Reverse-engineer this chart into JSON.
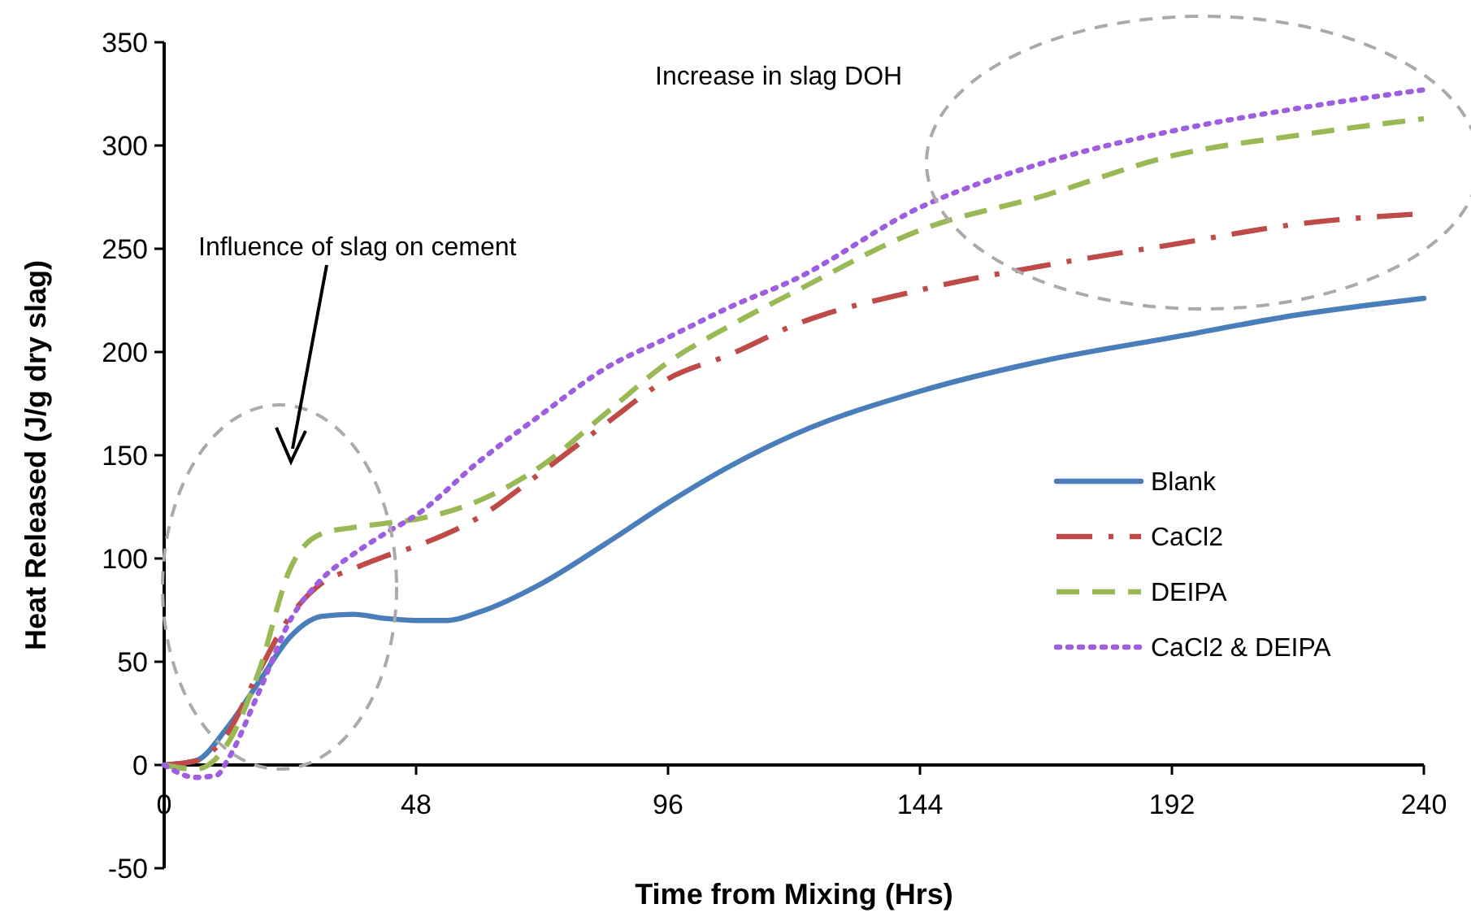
{
  "chart_data": {
    "type": "line",
    "xlabel": "Time from Mixing (Hrs)",
    "ylabel": "Heat Released (J/g dry slag)",
    "xlim": [
      0,
      240
    ],
    "xticks": [
      0,
      48,
      96,
      144,
      192,
      240
    ],
    "ylim": [
      -50,
      350
    ],
    "yticks": [
      -50,
      0,
      50,
      100,
      150,
      200,
      250,
      300,
      350
    ],
    "grid": false,
    "legend": "right",
    "marker": "none",
    "annotations": [
      "Influence of slag on cement",
      "Increase in slag DOH"
    ],
    "series": [
      {
        "name": "Blank",
        "color": "#4a7ebb",
        "line_style": "solid",
        "x": [
          0,
          6,
          12,
          18,
          24,
          30,
          36,
          42,
          48,
          54,
          60,
          72,
          84,
          96,
          108,
          120,
          144,
          168,
          192,
          216,
          240
        ],
        "values": [
          0,
          2,
          18,
          40,
          62,
          72,
          73,
          71,
          70,
          70,
          74,
          88,
          107,
          127,
          145,
          160,
          181,
          196,
          207,
          218,
          226
        ]
      },
      {
        "name": "CaCl2",
        "color": "#be4b48",
        "line_style": "dashdot",
        "x": [
          0,
          6,
          12,
          18,
          24,
          30,
          36,
          42,
          48,
          60,
          72,
          84,
          96,
          108,
          120,
          144,
          168,
          192,
          216,
          240
        ],
        "values": [
          0,
          2,
          15,
          45,
          72,
          88,
          95,
          101,
          106,
          120,
          142,
          165,
          187,
          199,
          213,
          230,
          242,
          252,
          262,
          267
        ]
      },
      {
        "name": "DEIPA",
        "color": "#98b954",
        "line_style": "dashed",
        "x": [
          0,
          6,
          12,
          18,
          24,
          30,
          36,
          42,
          48,
          60,
          72,
          84,
          96,
          108,
          120,
          144,
          168,
          192,
          216,
          240
        ],
        "values": [
          0,
          -2,
          10,
          45,
          95,
          112,
          115,
          117,
          119,
          128,
          145,
          170,
          195,
          213,
          229,
          259,
          276,
          295,
          305,
          313
        ]
      },
      {
        "name": "CaCl2 & DEIPA",
        "color": "#9d5fe0",
        "line_style": "dotted",
        "x": [
          0,
          6,
          10,
          12,
          18,
          24,
          30,
          36,
          42,
          48,
          60,
          72,
          84,
          96,
          108,
          120,
          144,
          168,
          192,
          216,
          240
        ],
        "values": [
          0,
          -6,
          -5,
          2,
          35,
          70,
          90,
          102,
          112,
          121,
          147,
          170,
          192,
          207,
          222,
          235,
          270,
          292,
          307,
          318,
          327
        ]
      }
    ]
  }
}
